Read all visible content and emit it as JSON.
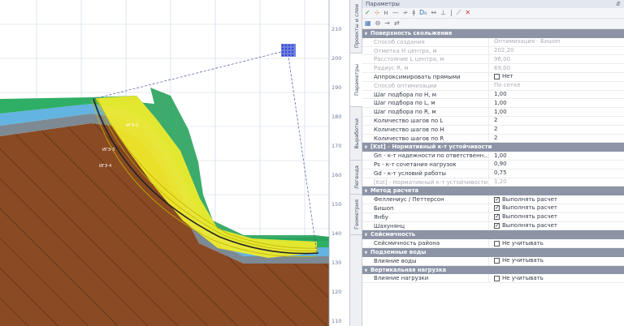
{
  "canvas": {
    "axis_labels": [
      "210",
      "200",
      "190",
      "180",
      "170",
      "160",
      "150",
      "140",
      "130",
      "120",
      "110"
    ],
    "labels": [
      "ИГЭ-2",
      "ИГЭ-3",
      "ИГЭ-4"
    ]
  },
  "side_tabs": [
    "Проекты и слои",
    "Параметры",
    "Выработки",
    "Легенда",
    "Геометрия"
  ],
  "panel": {
    "title": "Параметры",
    "pin": "⇵",
    "toolbar_row1": [
      "✓",
      "⊹",
      "н",
      "—",
      "≁",
      "ǂ",
      "D₀",
      "↔",
      "⊥",
      "|",
      "⟋",
      "✕"
    ],
    "toolbar_row2": [
      "▦",
      "⊖",
      "→",
      "⇄"
    ],
    "sections": [
      {
        "title": "Поверхность скольжения",
        "rows": [
          {
            "label": "Способ создания",
            "value": "Оптимизация - Бишоп",
            "dim": true
          },
          {
            "label": "Отметка Н центра, м",
            "value": "202,20",
            "dim": true
          },
          {
            "label": "Расстояние L центра, м",
            "value": "96,00",
            "dim": true
          },
          {
            "label": "Радиус R, м",
            "value": "69,00",
            "dim": true
          },
          {
            "label": "Аппроксимировать прямыми",
            "value": "Нет",
            "checkbox": false
          },
          {
            "label": "Способ оптимизации",
            "value": "По сетке",
            "dim": true
          },
          {
            "label": "Шаг подбора по Н, м",
            "value": "1,00"
          },
          {
            "label": "Шаг подбора по L, м",
            "value": "1,00"
          },
          {
            "label": "Шаг подбора по R, м",
            "value": "1,00"
          },
          {
            "label": "Количество шагов по L",
            "value": "2"
          },
          {
            "label": "Количество шагов по Н",
            "value": "2"
          },
          {
            "label": "Количество шагов по R",
            "value": "2"
          }
        ]
      },
      {
        "title": "[Kst] - Нормативный к-т устойчивости",
        "rows": [
          {
            "label": "Gn - к-т надежности по ответственн...",
            "value": "1,00"
          },
          {
            "label": "Ps - к-т сочетания нагрузок",
            "value": "0,90"
          },
          {
            "label": "Gd - к-т условий работы",
            "value": "0,75"
          },
          {
            "label": "[Kst] - Нормативный к-т устойчивости",
            "value": "1,20",
            "dim": true
          }
        ]
      },
      {
        "title": "Метод расчета",
        "rows": [
          {
            "label": "Феллениус / Петтерсон",
            "value": "Выполнять расчет",
            "checkbox": true
          },
          {
            "label": "Бишоп",
            "value": "Выполнять расчет",
            "checkbox": true
          },
          {
            "label": "Янбу",
            "value": "Выполнять расчет",
            "checkbox": true
          },
          {
            "label": "Шахунянц",
            "value": "Выполнять расчет",
            "checkbox": true
          }
        ]
      },
      {
        "title": "Сейсмичность",
        "rows": [
          {
            "label": "Сейсмичность района",
            "value": "Не учитывать",
            "checkbox": false
          }
        ]
      },
      {
        "title": "Подземные воды",
        "rows": [
          {
            "label": "Влияние воды",
            "value": "Не учитывать",
            "checkbox": false
          }
        ]
      },
      {
        "title": "Вертикальная нагрузка",
        "rows": [
          {
            "label": "Влияние нагрузки",
            "value": "Не учитывать",
            "checkbox": false
          }
        ]
      }
    ]
  },
  "colors": {
    "soil_brown": "#8a4a23",
    "layer_green": "#2fae66",
    "layer_blue": "#63b4e0",
    "layer_gray": "#7d8a94",
    "slip_yellow": "#f2ec2a",
    "section_header": "#8c94a6",
    "center_grid": "#2233cc"
  }
}
